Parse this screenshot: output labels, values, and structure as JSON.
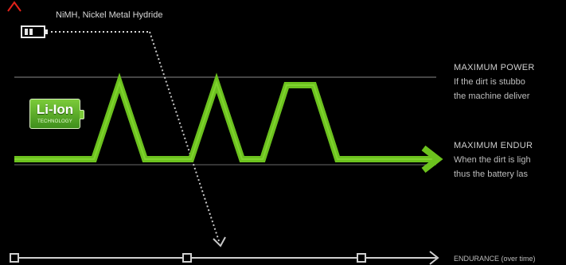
{
  "colors": {
    "background": "#000000",
    "curve": "#6cc21e",
    "axis_top": "#e0221a",
    "axis_mid": "#e8c417",
    "axis_bottom": "#58b81a",
    "reference_lines": "#8a8a8a"
  },
  "labels": {
    "nimh": "NiMH, Nickel Metal Hydride",
    "max_power_title": "MAXIMUM POWER",
    "max_power_line1": "If the dirt is stubbo",
    "max_power_line2": "the machine deliver",
    "max_endurance_title": "MAXIMUM ENDUR",
    "max_endurance_line1": "When the dirt is ligh",
    "max_endurance_line2": "thus the battery las",
    "endurance_axis": "ENDURANCE (over time)"
  },
  "badge": {
    "text": "Li-Ion",
    "subtext": "TECHNOLOGY"
  },
  "icons": {
    "nimh_battery": "battery-icon",
    "x_axis_markers": [
      "square-marker-icon",
      "square-marker-icon",
      "square-marker-icon"
    ]
  }
}
